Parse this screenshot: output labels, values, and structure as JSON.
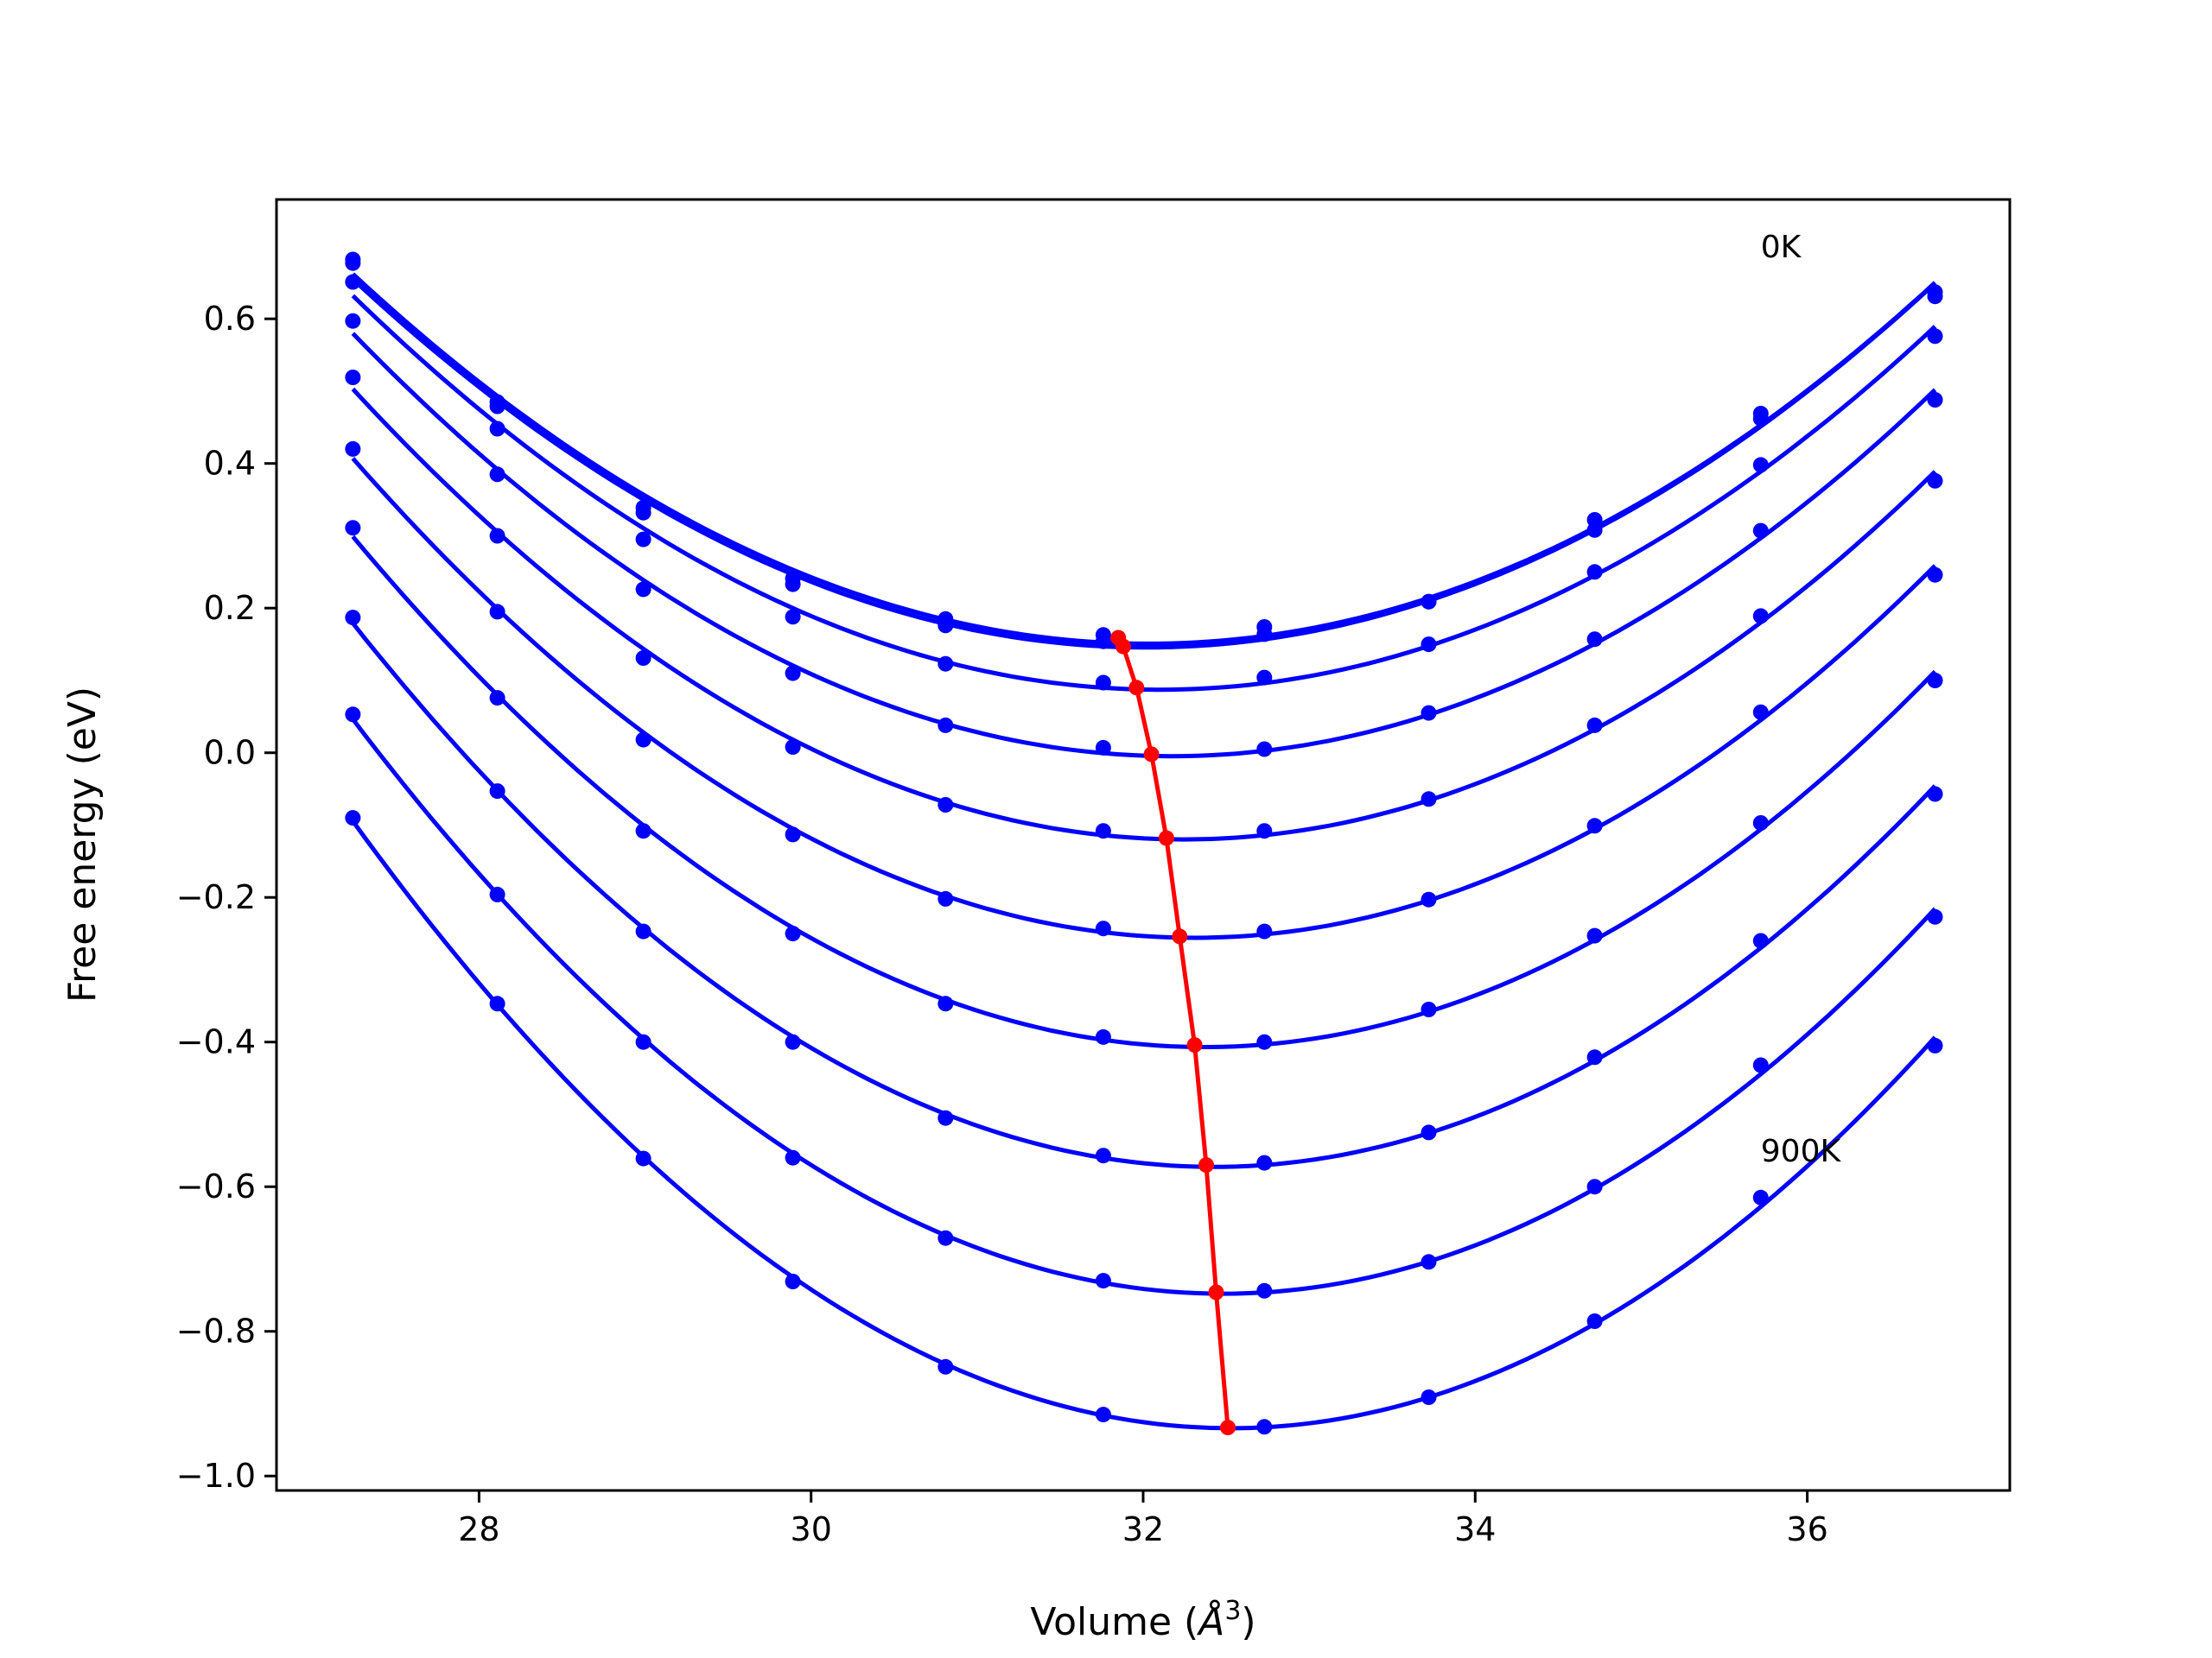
{
  "chart_data": {
    "type": "line",
    "xlabel": "Volume (",
    "xlabel_unit": "Å",
    "xlabel_exp": "3",
    "xlabel_close": ")",
    "ylabel": "Free energy (eV)",
    "xlim": [
      26.78,
      37.22
    ],
    "ylim": [
      -1.02,
      0.765
    ],
    "xticks": [
      28,
      30,
      32,
      34,
      36
    ],
    "xtick_labels": [
      "28",
      "30",
      "32",
      "34",
      "36"
    ],
    "yticks": [
      -1.0,
      -0.8,
      -0.6,
      -0.4,
      -0.2,
      0.0,
      0.2,
      0.4,
      0.6
    ],
    "ytick_labels": [
      "−1.0",
      "−0.8",
      "−0.6",
      "−0.4",
      "−0.2",
      "0.0",
      "0.2",
      "0.4",
      "0.6"
    ],
    "grid": false,
    "legend": "none",
    "annotations": [
      {
        "text": "0K",
        "x": 35.72,
        "y": 0.685
      },
      {
        "text": "900K",
        "x": 35.72,
        "y": -0.565
      }
    ],
    "curve_color": "#0000ff",
    "min_color": "#ff0000",
    "x": [
      27.24,
      28.11,
      28.99,
      29.89,
      30.81,
      31.76,
      32.73,
      33.72,
      34.72,
      35.72,
      36.77
    ],
    "series": [
      {
        "values": [
          0.682,
          0.485,
          0.339,
          0.241,
          0.185,
          0.163,
          0.174,
          0.209,
          0.308,
          0.469,
          0.637
        ]
      },
      {
        "values": [
          0.677,
          0.479,
          0.332,
          0.233,
          0.176,
          0.154,
          0.164,
          0.209,
          0.322,
          0.462,
          0.631
        ]
      },
      {
        "values": [
          0.651,
          0.448,
          0.295,
          0.188,
          0.123,
          0.097,
          0.104,
          0.15,
          0.25,
          0.398,
          0.576
        ]
      },
      {
        "values": [
          0.597,
          0.385,
          0.226,
          0.11,
          0.038,
          0.007,
          0.005,
          0.055,
          0.157,
          0.307,
          0.488
        ]
      },
      {
        "values": [
          0.519,
          0.3,
          0.131,
          0.008,
          -0.072,
          -0.108,
          -0.108,
          -0.064,
          0.038,
          0.189,
          0.376
        ]
      },
      {
        "values": [
          0.42,
          0.195,
          0.018,
          -0.113,
          -0.202,
          -0.243,
          -0.247,
          -0.203,
          -0.101,
          0.056,
          0.246
        ]
      },
      {
        "values": [
          0.311,
          0.076,
          -0.108,
          -0.25,
          -0.347,
          -0.393,
          -0.4,
          -0.355,
          -0.253,
          -0.097,
          0.1
        ]
      },
      {
        "values": [
          0.187,
          -0.053,
          -0.247,
          -0.4,
          -0.505,
          -0.557,
          -0.567,
          -0.525,
          -0.421,
          -0.26,
          -0.057
        ]
      },
      {
        "values": [
          0.053,
          -0.196,
          -0.4,
          -0.56,
          -0.671,
          -0.73,
          -0.744,
          -0.704,
          -0.6,
          -0.432,
          -0.227
        ]
      },
      {
        "values": [
          -0.09,
          -0.347,
          -0.561,
          -0.731,
          -0.849,
          -0.915,
          -0.932,
          -0.891,
          -0.786,
          -0.615,
          -0.405
        ]
      }
    ],
    "minima": [
      {
        "x": 31.85,
        "y": 0.159
      },
      {
        "x": 31.88,
        "y": 0.147
      },
      {
        "x": 31.96,
        "y": 0.09
      },
      {
        "x": 32.05,
        "y": -0.002
      },
      {
        "x": 32.14,
        "y": -0.118
      },
      {
        "x": 32.22,
        "y": -0.254
      },
      {
        "x": 32.31,
        "y": -0.404
      },
      {
        "x": 32.38,
        "y": -0.57
      },
      {
        "x": 32.44,
        "y": -0.746
      },
      {
        "x": 32.51,
        "y": -0.933
      }
    ]
  }
}
